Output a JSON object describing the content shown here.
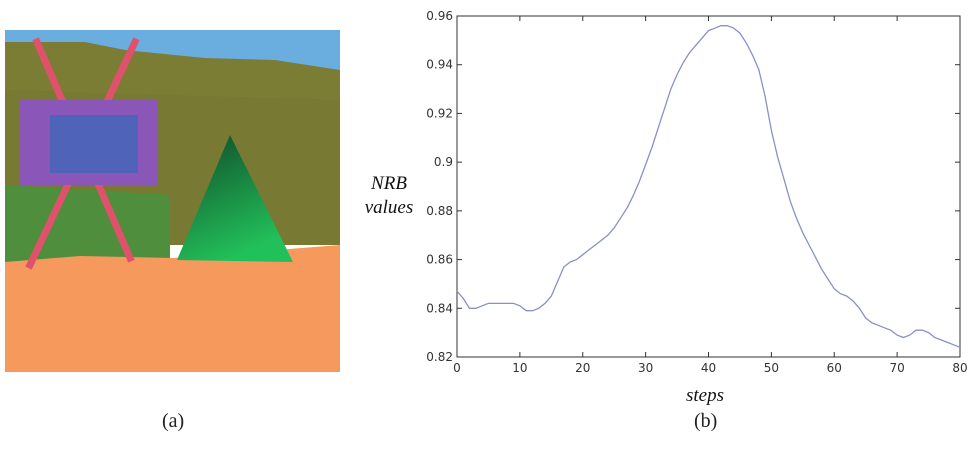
{
  "panels": {
    "left_caption": "(a)",
    "right_caption": "(b)"
  },
  "scene_colors": {
    "sky": "#6aaee0",
    "hills": "#7b7d35",
    "hills_dark": "#70732f",
    "grass": "#4e8e3d",
    "ground": "#f59a5c",
    "board_frame": "#8a56b8",
    "board_screen": "#4f63b8",
    "legs": "#e0526c",
    "cone_light": "#22c05a",
    "cone_dark": "#104a28"
  },
  "chart_data": {
    "type": "line",
    "title": "",
    "xlabel": "steps",
    "ylabel_lines": [
      "NRB",
      "values"
    ],
    "xlim": [
      0,
      80
    ],
    "ylim": [
      0.82,
      0.96
    ],
    "xticks": [
      0,
      10,
      20,
      30,
      40,
      50,
      60,
      70,
      80
    ],
    "yticks": [
      0.82,
      0.84,
      0.86,
      0.88,
      0.9,
      0.92,
      0.94,
      0.96
    ],
    "ytick_labels": [
      "0.82",
      "0.84",
      "0.86",
      "0.88",
      "0.9",
      "0.92",
      "0.94",
      "0.96"
    ],
    "grid": false,
    "line_color": "#8a90c8",
    "series": [
      {
        "x": [
          0,
          1,
          2,
          3,
          4,
          5,
          6,
          7,
          8,
          9,
          10,
          11,
          12,
          13,
          14,
          15,
          16,
          17,
          18,
          19,
          20,
          21,
          22,
          23,
          24,
          25,
          26,
          27,
          28,
          29,
          30,
          31,
          32,
          33,
          34,
          35,
          36,
          37,
          38,
          39,
          40,
          41,
          42,
          43,
          44,
          45,
          46,
          47,
          48,
          49,
          50,
          51,
          52,
          53,
          54,
          55,
          56,
          57,
          58,
          59,
          60,
          61,
          62,
          63,
          64,
          65,
          66,
          67,
          68,
          69,
          70,
          71,
          72,
          73,
          74,
          75,
          76,
          77,
          78,
          79,
          80
        ],
        "y": [
          0.847,
          0.844,
          0.84,
          0.84,
          0.841,
          0.842,
          0.842,
          0.842,
          0.842,
          0.842,
          0.841,
          0.839,
          0.839,
          0.84,
          0.842,
          0.845,
          0.851,
          0.857,
          0.859,
          0.86,
          0.862,
          0.864,
          0.866,
          0.868,
          0.87,
          0.873,
          0.877,
          0.881,
          0.886,
          0.892,
          0.899,
          0.906,
          0.914,
          0.922,
          0.93,
          0.936,
          0.941,
          0.945,
          0.948,
          0.951,
          0.954,
          0.955,
          0.956,
          0.956,
          0.955,
          0.953,
          0.949,
          0.944,
          0.938,
          0.927,
          0.913,
          0.902,
          0.893,
          0.884,
          0.877,
          0.871,
          0.866,
          0.861,
          0.856,
          0.852,
          0.848,
          0.846,
          0.845,
          0.843,
          0.84,
          0.836,
          0.834,
          0.833,
          0.832,
          0.831,
          0.829,
          0.828,
          0.829,
          0.831,
          0.831,
          0.83,
          0.828,
          0.827,
          0.826,
          0.825,
          0.824
        ]
      }
    ]
  }
}
